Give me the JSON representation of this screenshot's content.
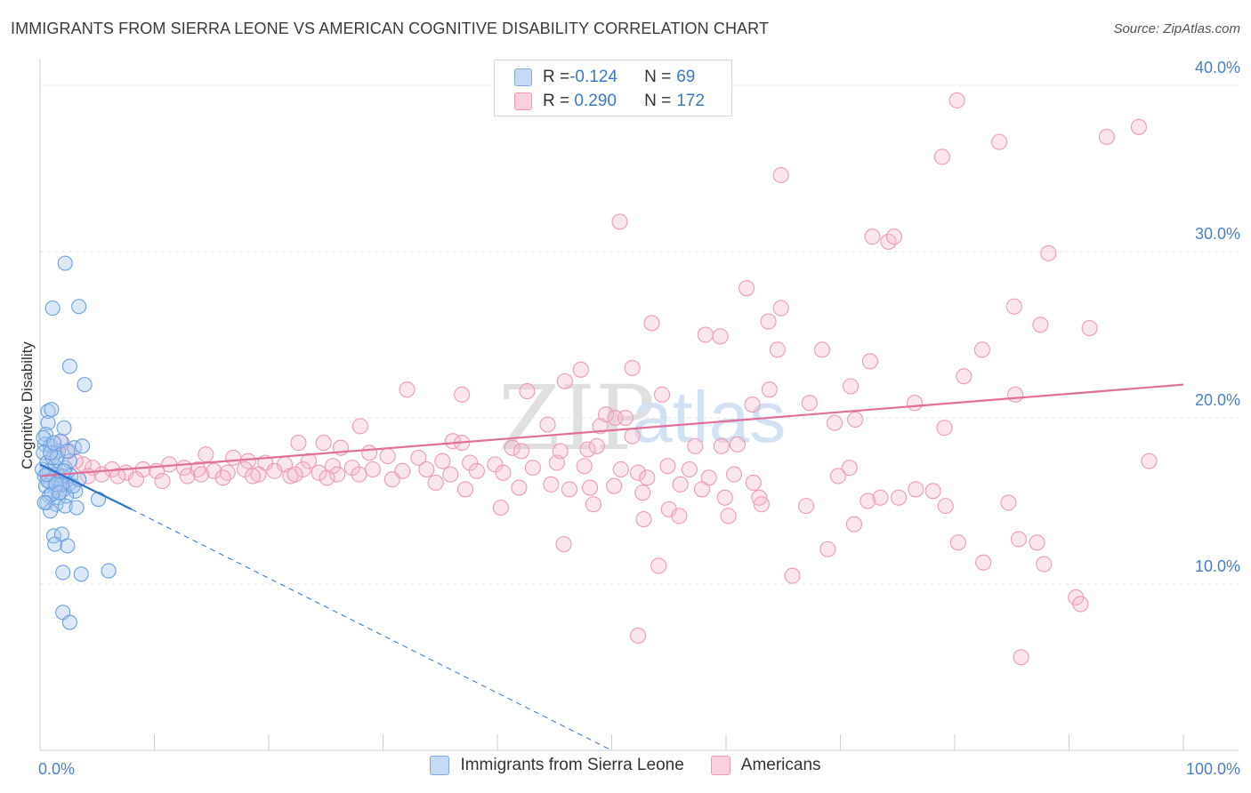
{
  "header": {
    "title": "IMMIGRANTS FROM SIERRA LEONE VS AMERICAN COGNITIVE DISABILITY CORRELATION CHART",
    "source": "Source: ZipAtlas.com"
  },
  "watermark": {
    "zip": "ZIP",
    "atlas": "atlas"
  },
  "legend": {
    "rows": [
      {
        "r_label": "R = ",
        "r_value": "-0.124",
        "n_label": "N = ",
        "n_value": "69",
        "color": "#a9c8f0"
      },
      {
        "r_label": "R = ",
        "r_value": " 0.290",
        "n_label": "N = ",
        "n_value": "172",
        "color": "#f7b8cb"
      }
    ]
  },
  "bottom_legend": [
    {
      "label": "Immigrants from Sierra Leone",
      "color": "#a9c8f0"
    },
    {
      "label": "Americans",
      "color": "#f7b8cb"
    }
  ],
  "chart_data": {
    "type": "scatter",
    "ylabel": "Cognitive Disability",
    "xlabel": "",
    "x_tick_labels": [
      "0.0%",
      "100.0%"
    ],
    "y_tick_labels": [
      "10.0%",
      "20.0%",
      "30.0%",
      "40.0%"
    ],
    "y_ticks": [
      10,
      20,
      30,
      40
    ],
    "xlim": [
      0,
      100
    ],
    "ylim": [
      0,
      41.5
    ],
    "grid": "horizontal dashed",
    "colors": {
      "blue": "#6a9fe0",
      "blue_line": "#2f73d0",
      "pink": "#ef9ab5",
      "pink_line": "#e0709a"
    },
    "series": [
      {
        "name": "Immigrants from Sierra Leone",
        "r": -0.124,
        "n": 69,
        "trend": {
          "solid": [
            [
              0,
              17.2
            ],
            [
              8,
              14.5
            ]
          ],
          "dashed": [
            [
              8,
              14.5
            ],
            [
              50,
              0
            ]
          ]
        },
        "points": [
          [
            2.2,
            29.3
          ],
          [
            1.1,
            26.6
          ],
          [
            3.4,
            26.7
          ],
          [
            2.6,
            23.1
          ],
          [
            3.9,
            22.0
          ],
          [
            0.7,
            20.4
          ],
          [
            1.0,
            20.5
          ],
          [
            0.7,
            19.7
          ],
          [
            2.1,
            19.4
          ],
          [
            0.5,
            19.0
          ],
          [
            0.4,
            18.4
          ],
          [
            0.9,
            18.3
          ],
          [
            1.6,
            18.0
          ],
          [
            3.0,
            18.2
          ],
          [
            3.7,
            18.3
          ],
          [
            0.3,
            17.9
          ],
          [
            0.6,
            17.3
          ],
          [
            1.3,
            17.1
          ],
          [
            2.2,
            17.0
          ],
          [
            0.8,
            16.8
          ],
          [
            1.5,
            16.6
          ],
          [
            0.4,
            16.5
          ],
          [
            1.2,
            16.4
          ],
          [
            2.0,
            16.5
          ],
          [
            2.7,
            16.5
          ],
          [
            0.9,
            16.1
          ],
          [
            1.7,
            16.2
          ],
          [
            2.5,
            16.0
          ],
          [
            0.5,
            15.9
          ],
          [
            1.3,
            15.8
          ],
          [
            2.1,
            15.7
          ],
          [
            3.1,
            15.6
          ],
          [
            0.8,
            15.3
          ],
          [
            1.6,
            15.2
          ],
          [
            2.3,
            15.3
          ],
          [
            0.6,
            14.9
          ],
          [
            1.4,
            14.8
          ],
          [
            2.2,
            14.7
          ],
          [
            0.9,
            14.4
          ],
          [
            3.2,
            14.6
          ],
          [
            5.1,
            15.1
          ],
          [
            1.2,
            12.9
          ],
          [
            1.9,
            13.0
          ],
          [
            1.3,
            12.4
          ],
          [
            2.4,
            12.3
          ],
          [
            2.0,
            10.7
          ],
          [
            3.6,
            10.6
          ],
          [
            6.0,
            10.8
          ],
          [
            2.0,
            8.3
          ],
          [
            2.6,
            7.7
          ],
          [
            1.1,
            17.6
          ],
          [
            1.8,
            18.6
          ],
          [
            0.2,
            16.9
          ],
          [
            0.7,
            16.2
          ],
          [
            1.0,
            15.4
          ],
          [
            2.9,
            15.9
          ],
          [
            1.5,
            17.6
          ],
          [
            0.3,
            18.8
          ],
          [
            2.6,
            17.4
          ],
          [
            1.9,
            16.0
          ],
          [
            0.6,
            16.6
          ],
          [
            1.4,
            16.0
          ],
          [
            2.4,
            18.0
          ],
          [
            0.9,
            17.9
          ],
          [
            1.7,
            15.5
          ],
          [
            3.4,
            16.3
          ],
          [
            0.4,
            14.9
          ],
          [
            2.1,
            16.8
          ],
          [
            1.2,
            18.5
          ]
        ]
      },
      {
        "name": "Americans",
        "r": 0.29,
        "n": 172,
        "trend": {
          "solid": [
            [
              0,
              16.5
            ],
            [
              100,
              22.0
            ]
          ]
        },
        "points": [
          [
            80.2,
            39.1
          ],
          [
            96.1,
            37.5
          ],
          [
            83.9,
            36.6
          ],
          [
            93.3,
            36.9
          ],
          [
            78.9,
            35.7
          ],
          [
            64.8,
            34.6
          ],
          [
            50.7,
            31.8
          ],
          [
            72.8,
            30.9
          ],
          [
            74.2,
            30.6
          ],
          [
            74.7,
            30.9
          ],
          [
            88.2,
            29.9
          ],
          [
            61.8,
            27.8
          ],
          [
            64.8,
            26.6
          ],
          [
            85.2,
            26.7
          ],
          [
            53.5,
            25.7
          ],
          [
            63.7,
            25.8
          ],
          [
            87.5,
            25.6
          ],
          [
            91.8,
            25.4
          ],
          [
            58.2,
            25.0
          ],
          [
            59.5,
            24.9
          ],
          [
            64.5,
            24.1
          ],
          [
            68.4,
            24.1
          ],
          [
            82.4,
            24.1
          ],
          [
            72.6,
            23.4
          ],
          [
            47.3,
            22.9
          ],
          [
            51.8,
            23.0
          ],
          [
            45.9,
            22.2
          ],
          [
            42.6,
            21.6
          ],
          [
            54.4,
            21.4
          ],
          [
            63.8,
            21.7
          ],
          [
            70.9,
            21.9
          ],
          [
            80.8,
            22.5
          ],
          [
            85.3,
            21.4
          ],
          [
            32.1,
            21.7
          ],
          [
            36.9,
            21.4
          ],
          [
            62.3,
            20.8
          ],
          [
            67.3,
            20.9
          ],
          [
            76.5,
            20.9
          ],
          [
            49.5,
            20.2
          ],
          [
            50.3,
            20.0
          ],
          [
            51.2,
            20.0
          ],
          [
            69.5,
            19.7
          ],
          [
            71.3,
            19.9
          ],
          [
            28.0,
            19.5
          ],
          [
            44.4,
            19.6
          ],
          [
            49.0,
            19.5
          ],
          [
            79.1,
            19.4
          ],
          [
            51.8,
            18.9
          ],
          [
            57.3,
            18.3
          ],
          [
            59.6,
            18.3
          ],
          [
            61.0,
            18.4
          ],
          [
            36.1,
            18.6
          ],
          [
            36.9,
            18.5
          ],
          [
            41.3,
            18.2
          ],
          [
            42.1,
            18.0
          ],
          [
            45.5,
            18.0
          ],
          [
            47.9,
            18.1
          ],
          [
            48.7,
            18.3
          ],
          [
            22.6,
            18.5
          ],
          [
            24.8,
            18.5
          ],
          [
            26.3,
            18.2
          ],
          [
            28.8,
            17.9
          ],
          [
            30.4,
            17.7
          ],
          [
            33.1,
            17.6
          ],
          [
            35.2,
            17.4
          ],
          [
            37.6,
            17.3
          ],
          [
            39.8,
            17.2
          ],
          [
            14.5,
            17.8
          ],
          [
            16.9,
            17.6
          ],
          [
            18.2,
            17.4
          ],
          [
            19.7,
            17.3
          ],
          [
            21.4,
            17.2
          ],
          [
            23.5,
            17.4
          ],
          [
            25.6,
            17.1
          ],
          [
            27.3,
            17.0
          ],
          [
            29.1,
            16.9
          ],
          [
            31.7,
            16.8
          ],
          [
            33.8,
            16.9
          ],
          [
            35.9,
            16.6
          ],
          [
            38.2,
            16.8
          ],
          [
            40.5,
            16.7
          ],
          [
            43.1,
            17.0
          ],
          [
            45.2,
            17.3
          ],
          [
            47.6,
            17.1
          ],
          [
            50.8,
            16.9
          ],
          [
            52.3,
            16.7
          ],
          [
            54.9,
            17.1
          ],
          [
            56.8,
            16.9
          ],
          [
            58.5,
            16.4
          ],
          [
            60.7,
            16.6
          ],
          [
            62.4,
            16.1
          ],
          [
            11.3,
            17.2
          ],
          [
            12.6,
            17.0
          ],
          [
            13.8,
            16.9
          ],
          [
            15.2,
            16.8
          ],
          [
            16.4,
            16.7
          ],
          [
            17.9,
            16.9
          ],
          [
            19.1,
            16.6
          ],
          [
            20.5,
            16.8
          ],
          [
            21.9,
            16.5
          ],
          [
            23.0,
            16.9
          ],
          [
            24.4,
            16.7
          ],
          [
            26.0,
            16.6
          ],
          [
            9.0,
            16.9
          ],
          [
            10.2,
            16.8
          ],
          [
            7.5,
            16.7
          ],
          [
            6.3,
            16.9
          ],
          [
            5.4,
            16.6
          ],
          [
            4.6,
            17.0
          ],
          [
            3.8,
            17.2
          ],
          [
            3.1,
            17.4
          ],
          [
            2.5,
            18.0
          ],
          [
            1.9,
            18.5
          ],
          [
            1.3,
            17.9
          ],
          [
            2.1,
            16.4
          ],
          [
            4.2,
            16.5
          ],
          [
            6.8,
            16.5
          ],
          [
            8.4,
            16.3
          ],
          [
            10.7,
            16.2
          ],
          [
            12.9,
            16.5
          ],
          [
            14.1,
            16.6
          ],
          [
            16.0,
            16.4
          ],
          [
            18.6,
            16.5
          ],
          [
            22.3,
            16.6
          ],
          [
            25.1,
            16.4
          ],
          [
            27.9,
            16.6
          ],
          [
            30.8,
            16.3
          ],
          [
            34.6,
            16.1
          ],
          [
            37.2,
            15.7
          ],
          [
            41.9,
            15.8
          ],
          [
            44.7,
            16.0
          ],
          [
            48.1,
            15.8
          ],
          [
            50.2,
            15.9
          ],
          [
            53.1,
            16.4
          ],
          [
            56.0,
            16.0
          ],
          [
            57.9,
            15.7
          ],
          [
            62.9,
            15.2
          ],
          [
            69.8,
            16.5
          ],
          [
            70.8,
            17.0
          ],
          [
            75.1,
            15.2
          ],
          [
            76.6,
            15.7
          ],
          [
            78.1,
            15.6
          ],
          [
            84.7,
            14.9
          ],
          [
            97.0,
            17.4
          ],
          [
            46.3,
            15.7
          ],
          [
            52.7,
            15.5
          ],
          [
            59.9,
            15.2
          ],
          [
            67.0,
            14.7
          ],
          [
            72.4,
            15.0
          ],
          [
            73.5,
            15.2
          ],
          [
            79.2,
            14.7
          ],
          [
            40.3,
            14.6
          ],
          [
            48.4,
            14.8
          ],
          [
            55.0,
            14.5
          ],
          [
            63.1,
            14.8
          ],
          [
            52.8,
            13.9
          ],
          [
            55.9,
            14.1
          ],
          [
            60.2,
            14.1
          ],
          [
            71.2,
            13.6
          ],
          [
            45.8,
            12.4
          ],
          [
            68.9,
            12.1
          ],
          [
            80.3,
            12.5
          ],
          [
            85.6,
            12.7
          ],
          [
            87.2,
            12.5
          ],
          [
            54.1,
            11.1
          ],
          [
            65.8,
            10.5
          ],
          [
            82.5,
            11.3
          ],
          [
            87.8,
            11.2
          ],
          [
            90.6,
            9.2
          ],
          [
            91.0,
            8.8
          ],
          [
            52.3,
            6.9
          ],
          [
            85.8,
            5.6
          ]
        ]
      }
    ]
  }
}
